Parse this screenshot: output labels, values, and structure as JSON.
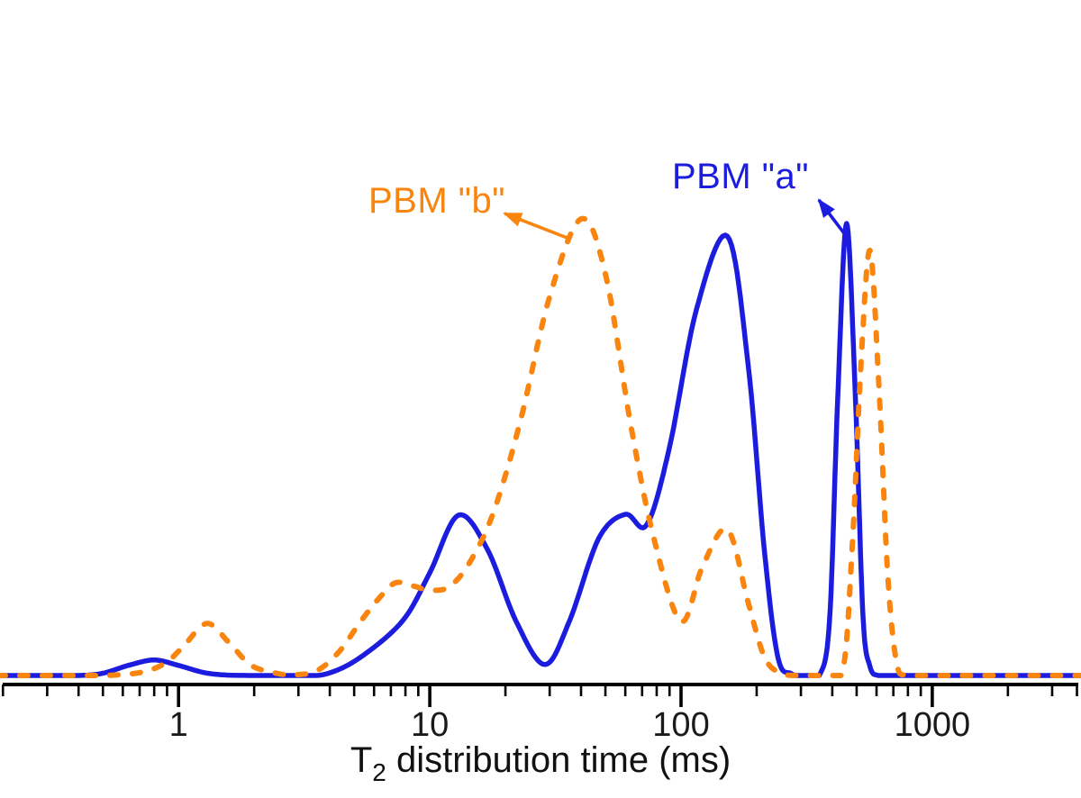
{
  "annotations": [
    {
      "id": "pbm_a",
      "text": "PBM \"a\"",
      "color": "#1C1CDF"
    },
    {
      "id": "pbm_b",
      "text": "PBM \"b\"",
      "color": "#F9840E"
    }
  ],
  "chart_data": {
    "type": "line",
    "title": "",
    "xlabel": "T2 distribution time (ms)",
    "xlabel_parts": {
      "prefix": "T",
      "subscript": "2",
      "suffix": " distribution time (ms)"
    },
    "ylabel": "",
    "x_axis": {
      "scale": "log",
      "unit": "ms",
      "range": [
        0.2,
        4000
      ],
      "major_ticks": [
        1,
        10,
        100,
        1000
      ],
      "tick_labels": [
        "1",
        "10",
        "100",
        "1000"
      ],
      "minor_ticks": "2-9 per decade from 0.2 to 4000"
    },
    "y_axis": {
      "visible": false,
      "range": [
        0,
        1.05
      ],
      "units": "amplitude (unlabeled, normalized)"
    },
    "grid": "off",
    "legend": "none (curve labels annotated with arrows)",
    "series": [
      {
        "name": "PBM \"a\"",
        "color": "#1C1CDF",
        "line_style": "solid",
        "points_t_ms_amp": [
          [
            0.19,
            0
          ],
          [
            0.28,
            0
          ],
          [
            0.4,
            0
          ],
          [
            0.5,
            0.005
          ],
          [
            0.63,
            0.022
          ],
          [
            0.8,
            0.034
          ],
          [
            1.0,
            0.022
          ],
          [
            1.25,
            0.007
          ],
          [
            1.55,
            0.001
          ],
          [
            2.2,
            0
          ],
          [
            3.0,
            0
          ],
          [
            3.9,
            0.004
          ],
          [
            5.3,
            0.04
          ],
          [
            7.8,
            0.12
          ],
          [
            10,
            0.225
          ],
          [
            13,
            0.351
          ],
          [
            17,
            0.275
          ],
          [
            22,
            0.12
          ],
          [
            28.7,
            0.024
          ],
          [
            36,
            0.12
          ],
          [
            47,
            0.3
          ],
          [
            60,
            0.353
          ],
          [
            73,
            0.33
          ],
          [
            90,
            0.5
          ],
          [
            115,
            0.8
          ],
          [
            153,
            0.962
          ],
          [
            185,
            0.68
          ],
          [
            215,
            0.27
          ],
          [
            243,
            0.04
          ],
          [
            275,
            0.004
          ],
          [
            310,
            0
          ],
          [
            355,
            0
          ],
          [
            390,
            0.12
          ],
          [
            420,
            0.6
          ],
          [
            456,
            0.99
          ],
          [
            495,
            0.6
          ],
          [
            530,
            0.13
          ],
          [
            565,
            0.02
          ],
          [
            610,
            0
          ],
          [
            700,
            0
          ],
          [
            900,
            0
          ],
          [
            1500,
            0
          ],
          [
            2500,
            0
          ],
          [
            4000,
            0
          ]
        ]
      },
      {
        "name": "PBM \"b\"",
        "color": "#F9840E",
        "line_style": "dashed",
        "points_t_ms_amp": [
          [
            0.19,
            0
          ],
          [
            0.3,
            0
          ],
          [
            0.45,
            0
          ],
          [
            0.6,
            0.002
          ],
          [
            0.75,
            0.01
          ],
          [
            0.9,
            0.03
          ],
          [
            1.05,
            0.065
          ],
          [
            1.3,
            0.114
          ],
          [
            1.6,
            0.07
          ],
          [
            1.95,
            0.022
          ],
          [
            2.5,
            0.004
          ],
          [
            3.0,
            0.002
          ],
          [
            3.6,
            0.012
          ],
          [
            4.4,
            0.055
          ],
          [
            5.3,
            0.118
          ],
          [
            6.3,
            0.17
          ],
          [
            7.3,
            0.203
          ],
          [
            8.6,
            0.196
          ],
          [
            10,
            0.187
          ],
          [
            12,
            0.195
          ],
          [
            14.5,
            0.25
          ],
          [
            18,
            0.36
          ],
          [
            23,
            0.56
          ],
          [
            30,
            0.83
          ],
          [
            40,
            1.0
          ],
          [
            50,
            0.88
          ],
          [
            63,
            0.55
          ],
          [
            78,
            0.3
          ],
          [
            100,
            0.118
          ],
          [
            122,
            0.24
          ],
          [
            153,
            0.32
          ],
          [
            185,
            0.16
          ],
          [
            215,
            0.04
          ],
          [
            250,
            0.005
          ],
          [
            300,
            0
          ],
          [
            370,
            0
          ],
          [
            440,
            0.01
          ],
          [
            480,
            0.28
          ],
          [
            520,
            0.68
          ],
          [
            565,
            0.931
          ],
          [
            615,
            0.62
          ],
          [
            665,
            0.22
          ],
          [
            720,
            0.03
          ],
          [
            790,
            0
          ],
          [
            1000,
            0
          ],
          [
            2200,
            0
          ],
          [
            4000,
            0
          ]
        ]
      }
    ]
  }
}
